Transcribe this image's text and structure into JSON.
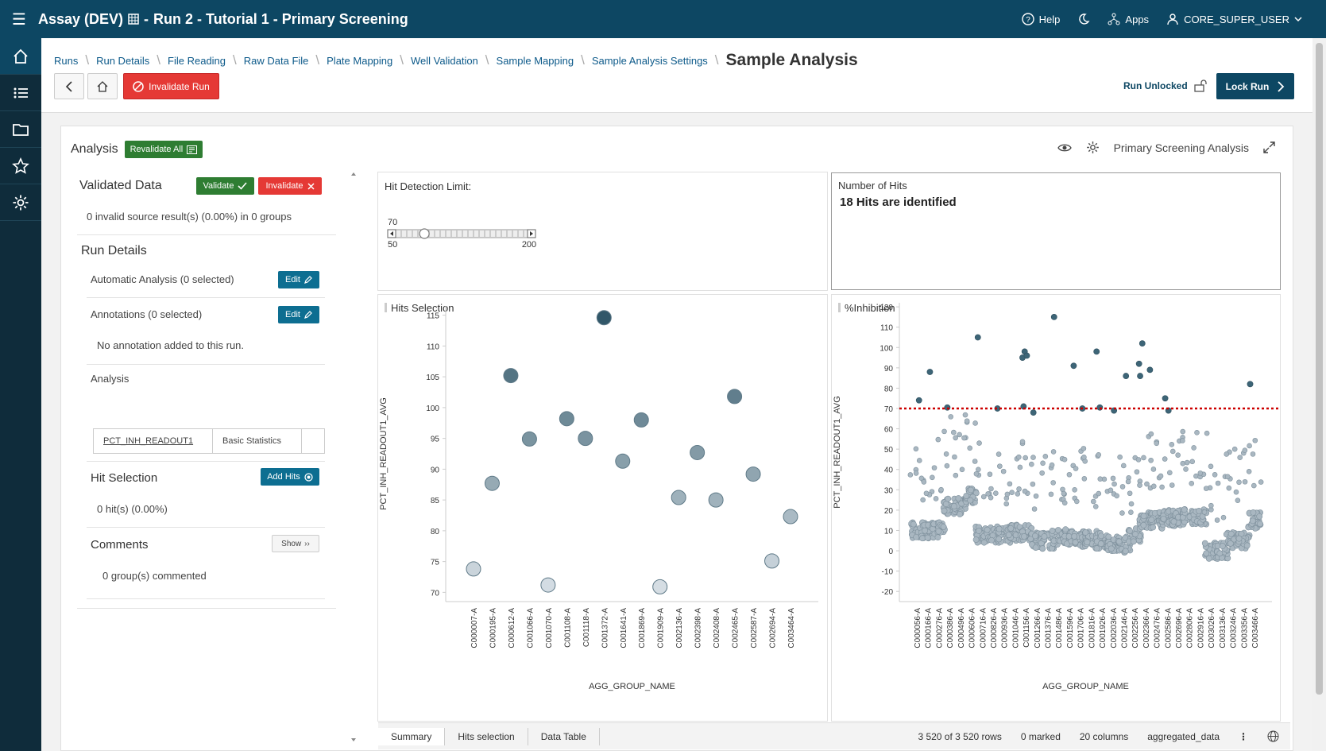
{
  "topbar": {
    "title_left": "Assay (DEV)",
    "title_right": "Run 2 - Tutorial 1 - Primary Screening",
    "help": "Help",
    "apps": "Apps",
    "user": "CORE_SUPER_USER"
  },
  "breadcrumbs": [
    "Runs",
    "Run Details",
    "File Reading",
    "Raw Data File",
    "Plate Mapping",
    "Well Validation",
    "Sample Mapping",
    "Sample Analysis Settings"
  ],
  "current_page": "Sample Analysis",
  "toolbar": {
    "invalidate_run": "Invalidate Run",
    "run_status": "Run Unlocked",
    "lock_run": "Lock Run"
  },
  "analysis": {
    "title": "Analysis",
    "revalidate_all": "Revalidate All",
    "analysis_name": "Primary Screening Analysis"
  },
  "left": {
    "validated_title": "Validated Data",
    "validate_btn": "Validate",
    "invalidate_btn": "Invalidate",
    "invalid_summary": "0 invalid source result(s) (0.00%) in 0 groups",
    "run_details_title": "Run Details",
    "automatic_analysis": "Automatic Analysis (0 selected)",
    "annotations": "Annotations (0 selected)",
    "edit_label": "Edit",
    "no_annotation": "No annotation added to this run.",
    "analysis_label": "Analysis",
    "analysis_table": [
      "PCT_INH_READOUT1",
      "Basic Statistics"
    ],
    "hit_selection_title": "Hit Selection",
    "add_hits": "Add Hits",
    "hits_count": "0 hit(s) (0.00%)",
    "comments_title": "Comments",
    "show_btn": "Show",
    "comments_count": "0 group(s) commented"
  },
  "hit_detection": {
    "label": "Hit Detection Limit:",
    "value": "70",
    "min": "50",
    "max": "200",
    "value_num": 70,
    "min_num": 50,
    "max_num": 200
  },
  "number_of_hits": {
    "label": "Number of Hits",
    "text": "18 Hits are identified"
  },
  "bottom": {
    "tabs": [
      "Summary",
      "Hits selection",
      "Data Table"
    ],
    "rows": "3 520 of 3 520 rows",
    "marked": "0 marked",
    "columns": "20 columns",
    "table": "aggregated_data"
  },
  "chart_data": [
    {
      "type": "scatter",
      "title": "Hits Selection",
      "xlabel": "AGG_GROUP_NAME",
      "ylabel": "PCT_INH_READOUT1_AVG",
      "ylim": [
        68.5,
        116.5
      ],
      "yticks": [
        70,
        75,
        80,
        85,
        90,
        95,
        100,
        105,
        110,
        115
      ],
      "colors": {
        "low": "#d8e0e6",
        "high": "#2f5668"
      },
      "categories": [
        "C000007-A",
        "C000195-A",
        "C000612-A",
        "C001066-A",
        "C001070-A",
        "C001108-A",
        "C001118-A",
        "C001372-A",
        "C001641-A",
        "C001869-A",
        "C001909-A",
        "C002136-A",
        "C002398-A",
        "C002408-A",
        "C002465-A",
        "C002587-A",
        "C002694-A",
        "C003464-A"
      ],
      "values": [
        73.8,
        87.7,
        105.2,
        94.9,
        71.2,
        98.2,
        95.0,
        114.6,
        91.3,
        98.0,
        70.9,
        85.4,
        92.7,
        85.0,
        101.8,
        89.2,
        75.1,
        82.3
      ]
    },
    {
      "type": "scatter",
      "title": "%Inhibition",
      "xlabel": "AGG_GROUP_NAME",
      "ylabel": "PCT_INH_READOUT1_AVG",
      "ylim": [
        -25,
        122
      ],
      "yticks": [
        -20,
        -10,
        0,
        10,
        20,
        30,
        40,
        50,
        60,
        70,
        80,
        90,
        100,
        110,
        120
      ],
      "threshold": 70,
      "colors": {
        "points": "#a9b7c1",
        "hits": "#3d6577",
        "threshold": "#cc0000"
      },
      "categories": [
        "C000056-A",
        "C000166-A",
        "C000276-A",
        "C000386-A",
        "C000496-A",
        "C000606-A",
        "C000716-A",
        "C000826-A",
        "C000936-A",
        "C001046-A",
        "C001156-A",
        "C001266-A",
        "C001376-A",
        "C001486-A",
        "C001596-A",
        "C001706-A",
        "C001816-A",
        "C001926-A",
        "C002036-A",
        "C002146-A",
        "C002256-A",
        "C002366-A",
        "C002476-A",
        "C002586-A",
        "C002696-A",
        "C002806-A",
        "C002916-A",
        "C003026-A",
        "C003136-A",
        "C003246-A",
        "C003356-A",
        "C003466-A"
      ],
      "hit_points": [
        [
          0.2,
          74
        ],
        [
          1.2,
          88
        ],
        [
          2.8,
          70.5
        ],
        [
          5.6,
          105
        ],
        [
          7.4,
          70
        ],
        [
          9.7,
          95
        ],
        [
          9.9,
          98
        ],
        [
          10.1,
          96
        ],
        [
          9.8,
          71
        ],
        [
          10.7,
          68
        ],
        [
          12.6,
          115
        ],
        [
          14.4,
          91
        ],
        [
          15.2,
          70
        ],
        [
          16.5,
          98
        ],
        [
          16.8,
          70.5
        ],
        [
          18.1,
          69
        ],
        [
          19.2,
          86
        ],
        [
          20.4,
          92
        ],
        [
          20.5,
          86
        ],
        [
          20.7,
          102
        ],
        [
          21.4,
          89
        ],
        [
          22.8,
          75
        ],
        [
          23.1,
          69
        ],
        [
          30.6,
          82
        ]
      ]
    }
  ]
}
